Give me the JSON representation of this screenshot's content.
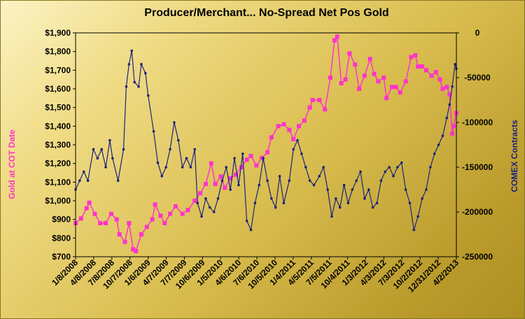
{
  "chart_data": {
    "type": "line",
    "title": "Producer/Merchant... No-Spread Net Pos Gold",
    "y_left_label": "Gold at COT Date",
    "y_right_label": "COMEX Contracts",
    "y_left_ticks": [
      "$700",
      "$800",
      "$900",
      "$1,000",
      "$1,100",
      "$1,200",
      "$1,300",
      "$1,400",
      "$1,500",
      "$1,600",
      "$1,700",
      "$1,800",
      "$1,900"
    ],
    "y_left_range": [
      700,
      1900
    ],
    "y_right_ticks": [
      "0",
      "-50000",
      "-100000",
      "-150000",
      "-200000",
      "-250000"
    ],
    "y_right_range": [
      -250000,
      0
    ],
    "x_ticks": [
      "1/8/2008",
      "4/8/2008",
      "7/8/2008",
      "10/7/2008",
      "1/6/2009",
      "4/7/2009",
      "7/7/2009",
      "10/6/2009",
      "1/5/2010",
      "4/6/2010",
      "7/6/2010",
      "10/5/2010",
      "1/4/2011",
      "4/5/2011",
      "7/5/2011",
      "10/4/2011",
      "1/3/2012",
      "4/3/2012",
      "7/3/2012",
      "10/2/2012",
      "12/31/2012",
      "4/2/2013"
    ],
    "x_range": [
      "2008-01-08",
      "2013-05-07"
    ],
    "series": [
      {
        "name": "Gold at COT Date",
        "axis": "left",
        "color": "#ff33cc",
        "marker": "square",
        "points": [
          [
            "2008-01-08",
            880
          ],
          [
            "2008-02-05",
            905
          ],
          [
            "2008-03-04",
            960
          ],
          [
            "2008-03-18",
            990
          ],
          [
            "2008-04-15",
            930
          ],
          [
            "2008-05-13",
            880
          ],
          [
            "2008-06-10",
            880
          ],
          [
            "2008-07-08",
            930
          ],
          [
            "2008-08-05",
            900
          ],
          [
            "2008-08-19",
            820
          ],
          [
            "2008-09-16",
            780
          ],
          [
            "2008-10-07",
            880
          ],
          [
            "2008-10-28",
            740
          ],
          [
            "2008-11-11",
            730
          ],
          [
            "2008-12-09",
            820
          ],
          [
            "2009-01-06",
            860
          ],
          [
            "2009-02-03",
            900
          ],
          [
            "2009-02-17",
            980
          ],
          [
            "2009-03-17",
            920
          ],
          [
            "2009-04-07",
            880
          ],
          [
            "2009-05-05",
            930
          ],
          [
            "2009-06-02",
            970
          ],
          [
            "2009-07-07",
            930
          ],
          [
            "2009-08-04",
            950
          ],
          [
            "2009-09-08",
            1000
          ],
          [
            "2009-10-06",
            1040
          ],
          [
            "2009-11-03",
            1090
          ],
          [
            "2009-12-01",
            1200
          ],
          [
            "2009-12-22",
            1090
          ],
          [
            "2010-01-19",
            1130
          ],
          [
            "2010-02-09",
            1070
          ],
          [
            "2010-03-09",
            1120
          ],
          [
            "2010-04-06",
            1140
          ],
          [
            "2010-05-04",
            1180
          ],
          [
            "2010-06-01",
            1220
          ],
          [
            "2010-06-22",
            1240
          ],
          [
            "2010-07-20",
            1190
          ],
          [
            "2010-08-17",
            1230
          ],
          [
            "2010-09-14",
            1260
          ],
          [
            "2010-10-05",
            1340
          ],
          [
            "2010-11-09",
            1400
          ],
          [
            "2010-12-07",
            1410
          ],
          [
            "2011-01-04",
            1380
          ],
          [
            "2011-01-25",
            1330
          ],
          [
            "2011-02-22",
            1400
          ],
          [
            "2011-03-22",
            1430
          ],
          [
            "2011-04-19",
            1500
          ],
          [
            "2011-05-03",
            1540
          ],
          [
            "2011-06-07",
            1540
          ],
          [
            "2011-07-05",
            1490
          ],
          [
            "2011-08-02",
            1660
          ],
          [
            "2011-08-23",
            1860
          ],
          [
            "2011-09-06",
            1880
          ],
          [
            "2011-09-27",
            1630
          ],
          [
            "2011-10-18",
            1650
          ],
          [
            "2011-11-08",
            1790
          ],
          [
            "2011-12-06",
            1730
          ],
          [
            "2011-12-27",
            1600
          ],
          [
            "2012-01-24",
            1670
          ],
          [
            "2012-02-21",
            1760
          ],
          [
            "2012-03-13",
            1680
          ],
          [
            "2012-04-03",
            1640
          ],
          [
            "2012-05-01",
            1660
          ],
          [
            "2012-05-15",
            1550
          ],
          [
            "2012-06-12",
            1610
          ],
          [
            "2012-07-03",
            1610
          ],
          [
            "2012-07-24",
            1580
          ],
          [
            "2012-08-21",
            1640
          ],
          [
            "2012-09-18",
            1770
          ],
          [
            "2012-10-09",
            1780
          ],
          [
            "2012-10-23",
            1720
          ],
          [
            "2012-11-13",
            1720
          ],
          [
            "2012-12-04",
            1700
          ],
          [
            "2012-12-31",
            1670
          ],
          [
            "2013-01-22",
            1690
          ],
          [
            "2013-02-12",
            1650
          ],
          [
            "2013-02-26",
            1600
          ],
          [
            "2013-03-19",
            1610
          ],
          [
            "2013-04-02",
            1570
          ],
          [
            "2013-04-16",
            1360
          ],
          [
            "2013-04-23",
            1400
          ],
          [
            "2013-05-07",
            1470
          ]
        ]
      },
      {
        "name": "COMEX Contracts",
        "axis": "right",
        "color": "#1a237e",
        "marker": "dot",
        "points": [
          [
            "2008-01-08",
            -175000
          ],
          [
            "2008-01-29",
            -165000
          ],
          [
            "2008-02-19",
            -155000
          ],
          [
            "2008-03-11",
            -165000
          ],
          [
            "2008-04-08",
            -130000
          ],
          [
            "2008-04-29",
            -140000
          ],
          [
            "2008-05-20",
            -130000
          ],
          [
            "2008-06-10",
            -150000
          ],
          [
            "2008-07-01",
            -120000
          ],
          [
            "2008-07-15",
            -140000
          ],
          [
            "2008-08-12",
            -165000
          ],
          [
            "2008-09-09",
            -130000
          ],
          [
            "2008-09-23",
            -60000
          ],
          [
            "2008-10-07",
            -35000
          ],
          [
            "2008-10-21",
            -20000
          ],
          [
            "2008-11-04",
            -55000
          ],
          [
            "2008-11-25",
            -60000
          ],
          [
            "2008-12-09",
            -35000
          ],
          [
            "2008-12-30",
            -45000
          ],
          [
            "2009-01-13",
            -70000
          ],
          [
            "2009-02-10",
            -110000
          ],
          [
            "2009-03-03",
            -145000
          ],
          [
            "2009-03-24",
            -160000
          ],
          [
            "2009-04-14",
            -150000
          ],
          [
            "2009-05-05",
            -130000
          ],
          [
            "2009-05-26",
            -100000
          ],
          [
            "2009-06-16",
            -120000
          ],
          [
            "2009-07-07",
            -150000
          ],
          [
            "2009-07-28",
            -140000
          ],
          [
            "2009-08-18",
            -150000
          ],
          [
            "2009-09-08",
            -130000
          ],
          [
            "2009-09-22",
            -190000
          ],
          [
            "2009-10-13",
            -205000
          ],
          [
            "2009-11-03",
            -185000
          ],
          [
            "2009-11-24",
            -195000
          ],
          [
            "2009-12-15",
            -200000
          ],
          [
            "2010-01-05",
            -185000
          ],
          [
            "2010-01-26",
            -165000
          ],
          [
            "2010-02-16",
            -150000
          ],
          [
            "2010-03-09",
            -175000
          ],
          [
            "2010-03-30",
            -140000
          ],
          [
            "2010-04-20",
            -170000
          ],
          [
            "2010-05-11",
            -135000
          ],
          [
            "2010-06-01",
            -210000
          ],
          [
            "2010-06-22",
            -220000
          ],
          [
            "2010-07-13",
            -190000
          ],
          [
            "2010-08-03",
            -170000
          ],
          [
            "2010-08-24",
            -140000
          ],
          [
            "2010-09-14",
            -165000
          ],
          [
            "2010-10-05",
            -185000
          ],
          [
            "2010-10-26",
            -195000
          ],
          [
            "2010-11-16",
            -160000
          ],
          [
            "2010-12-07",
            -190000
          ],
          [
            "2011-01-04",
            -165000
          ],
          [
            "2011-01-25",
            -130000
          ],
          [
            "2011-02-15",
            -120000
          ],
          [
            "2011-03-08",
            -135000
          ],
          [
            "2011-03-29",
            -150000
          ],
          [
            "2011-04-19",
            -165000
          ],
          [
            "2011-05-10",
            -170000
          ],
          [
            "2011-06-07",
            -160000
          ],
          [
            "2011-06-28",
            -150000
          ],
          [
            "2011-07-19",
            -175000
          ],
          [
            "2011-08-09",
            -205000
          ],
          [
            "2011-08-30",
            -185000
          ],
          [
            "2011-09-20",
            -195000
          ],
          [
            "2011-10-11",
            -170000
          ],
          [
            "2011-11-01",
            -190000
          ],
          [
            "2011-11-22",
            -175000
          ],
          [
            "2011-12-13",
            -165000
          ],
          [
            "2012-01-03",
            -155000
          ],
          [
            "2012-01-24",
            -185000
          ],
          [
            "2012-02-14",
            -175000
          ],
          [
            "2012-03-06",
            -195000
          ],
          [
            "2012-03-27",
            -190000
          ],
          [
            "2012-04-17",
            -165000
          ],
          [
            "2012-05-08",
            -155000
          ],
          [
            "2012-05-29",
            -150000
          ],
          [
            "2012-06-19",
            -160000
          ],
          [
            "2012-07-10",
            -150000
          ],
          [
            "2012-07-31",
            -145000
          ],
          [
            "2012-08-21",
            -175000
          ],
          [
            "2012-09-11",
            -190000
          ],
          [
            "2012-10-02",
            -220000
          ],
          [
            "2012-10-23",
            -205000
          ],
          [
            "2012-11-13",
            -185000
          ],
          [
            "2012-12-04",
            -175000
          ],
          [
            "2012-12-25",
            -150000
          ],
          [
            "2013-01-15",
            -135000
          ],
          [
            "2013-02-05",
            -125000
          ],
          [
            "2013-02-26",
            -115000
          ],
          [
            "2013-03-19",
            -95000
          ],
          [
            "2013-04-02",
            -80000
          ],
          [
            "2013-04-16",
            -60000
          ],
          [
            "2013-04-30",
            -35000
          ],
          [
            "2013-05-07",
            -40000
          ]
        ]
      }
    ],
    "grid": false,
    "legend": "none"
  }
}
